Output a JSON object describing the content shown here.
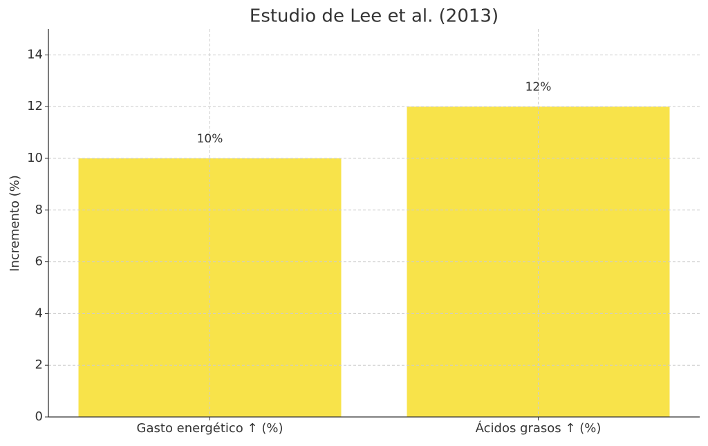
{
  "chart_data": {
    "type": "bar",
    "title": "Estudio de Lee et al. (2013)",
    "y_label": "Incremento (%)",
    "categories": [
      "Gasto energético ↑ (%)",
      "Ácidos grasos ↑ (%)"
    ],
    "values": [
      10,
      12
    ],
    "value_labels": [
      "10%",
      "12%"
    ],
    "color": "#f8e34a",
    "ylim": [
      0,
      15
    ],
    "yticks": [
      0,
      2,
      4,
      6,
      8,
      10,
      12,
      14
    ],
    "grid": true
  }
}
